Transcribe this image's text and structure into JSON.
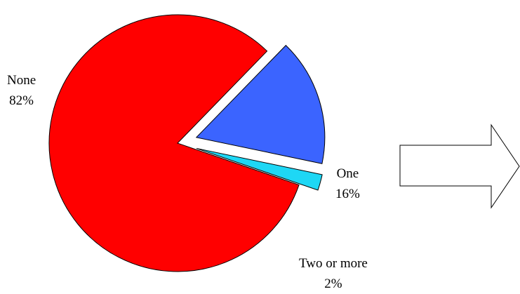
{
  "chart_data": {
    "type": "pie",
    "title": "",
    "slices": [
      {
        "name": "None",
        "value": 82,
        "label": "82%",
        "color": "#ff0000",
        "exploded": false
      },
      {
        "name": "One",
        "value": 16,
        "label": "16%",
        "color": "#3b64ff",
        "exploded": true
      },
      {
        "name": "Two or more",
        "value": 2,
        "label": "2%",
        "color": "#1ed7f5",
        "exploded": true
      }
    ]
  },
  "arrow": {
    "icon": "right-arrow-icon",
    "fill": "#ffffff",
    "stroke": "#000000"
  }
}
